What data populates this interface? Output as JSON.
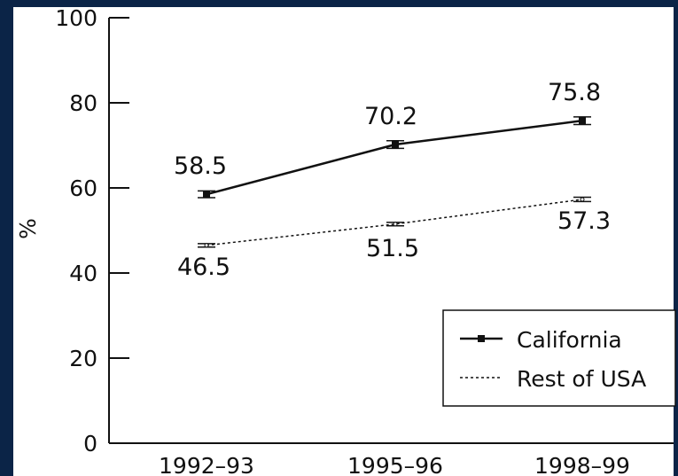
{
  "chart_data": {
    "type": "line",
    "categories": [
      "1992–93",
      "1995–96",
      "1998–99"
    ],
    "series": [
      {
        "name": "California",
        "values": [
          58.5,
          70.2,
          75.8
        ],
        "labels": [
          "58.5",
          "70.2",
          "75.8"
        ],
        "error": [
          0.8,
          0.9,
          0.9
        ],
        "style": "solid",
        "marker": "filled-square"
      },
      {
        "name": "Rest of USA",
        "values": [
          46.5,
          51.5,
          57.3
        ],
        "labels": [
          "46.5",
          "51.5",
          "57.3"
        ],
        "error": [
          0.4,
          0.4,
          0.5
        ],
        "style": "dotted",
        "marker": "open"
      }
    ],
    "y_ticks": [
      "0",
      "20",
      "40",
      "60",
      "80",
      "100"
    ],
    "ylabel": "%",
    "xlabel": "",
    "title": "",
    "ylim": [
      0,
      100
    ],
    "grid": false,
    "legend_position": "bottom-right",
    "colors": {
      "background": "#0b2447",
      "plot": "#ffffff",
      "ink": "#111111"
    }
  }
}
